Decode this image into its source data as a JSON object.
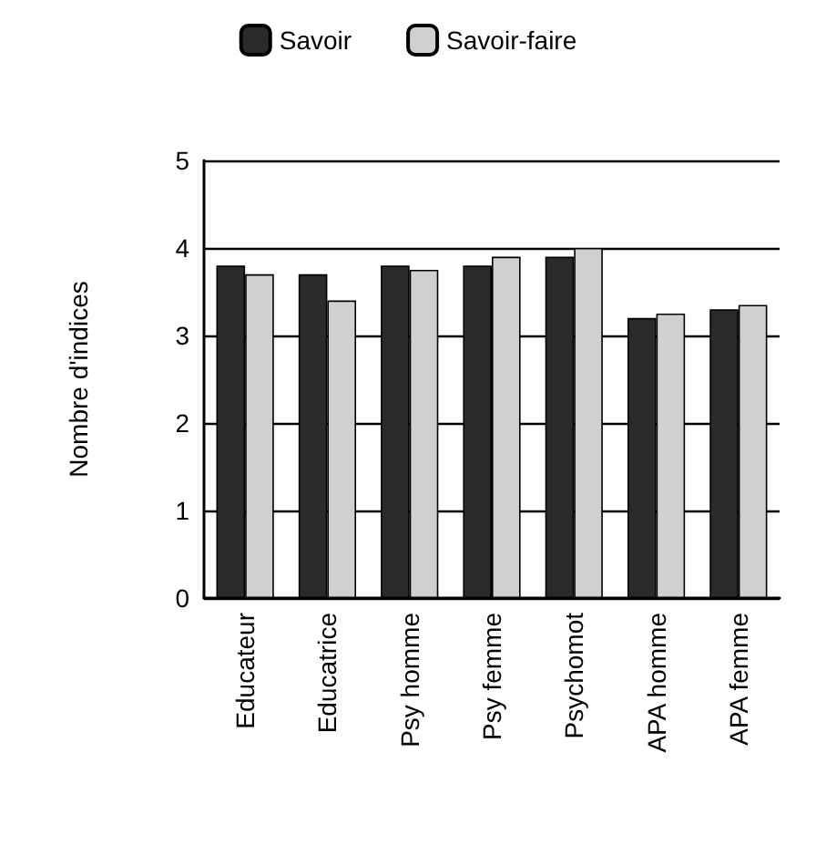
{
  "chart_data": {
    "type": "bar",
    "ylabel": "Nombre d'indices",
    "categories": [
      "Educateur",
      "Educatrice",
      "Psy homme",
      "Psy femme",
      "Psychomot",
      "APA homme",
      "APA femme"
    ],
    "series": [
      {
        "name": "Savoir",
        "color": "#2a2a2a",
        "values": [
          3.8,
          3.7,
          3.8,
          3.8,
          3.9,
          3.2,
          3.3
        ]
      },
      {
        "name": "Savoir-faire",
        "color": "#d0d0d0",
        "values": [
          3.7,
          3.4,
          3.75,
          3.9,
          4.0,
          3.25,
          3.35
        ]
      }
    ],
    "ylim": [
      0,
      5
    ],
    "yticks": [
      0,
      1,
      2,
      3,
      4,
      5
    ],
    "grid": "y",
    "legend": "top"
  }
}
